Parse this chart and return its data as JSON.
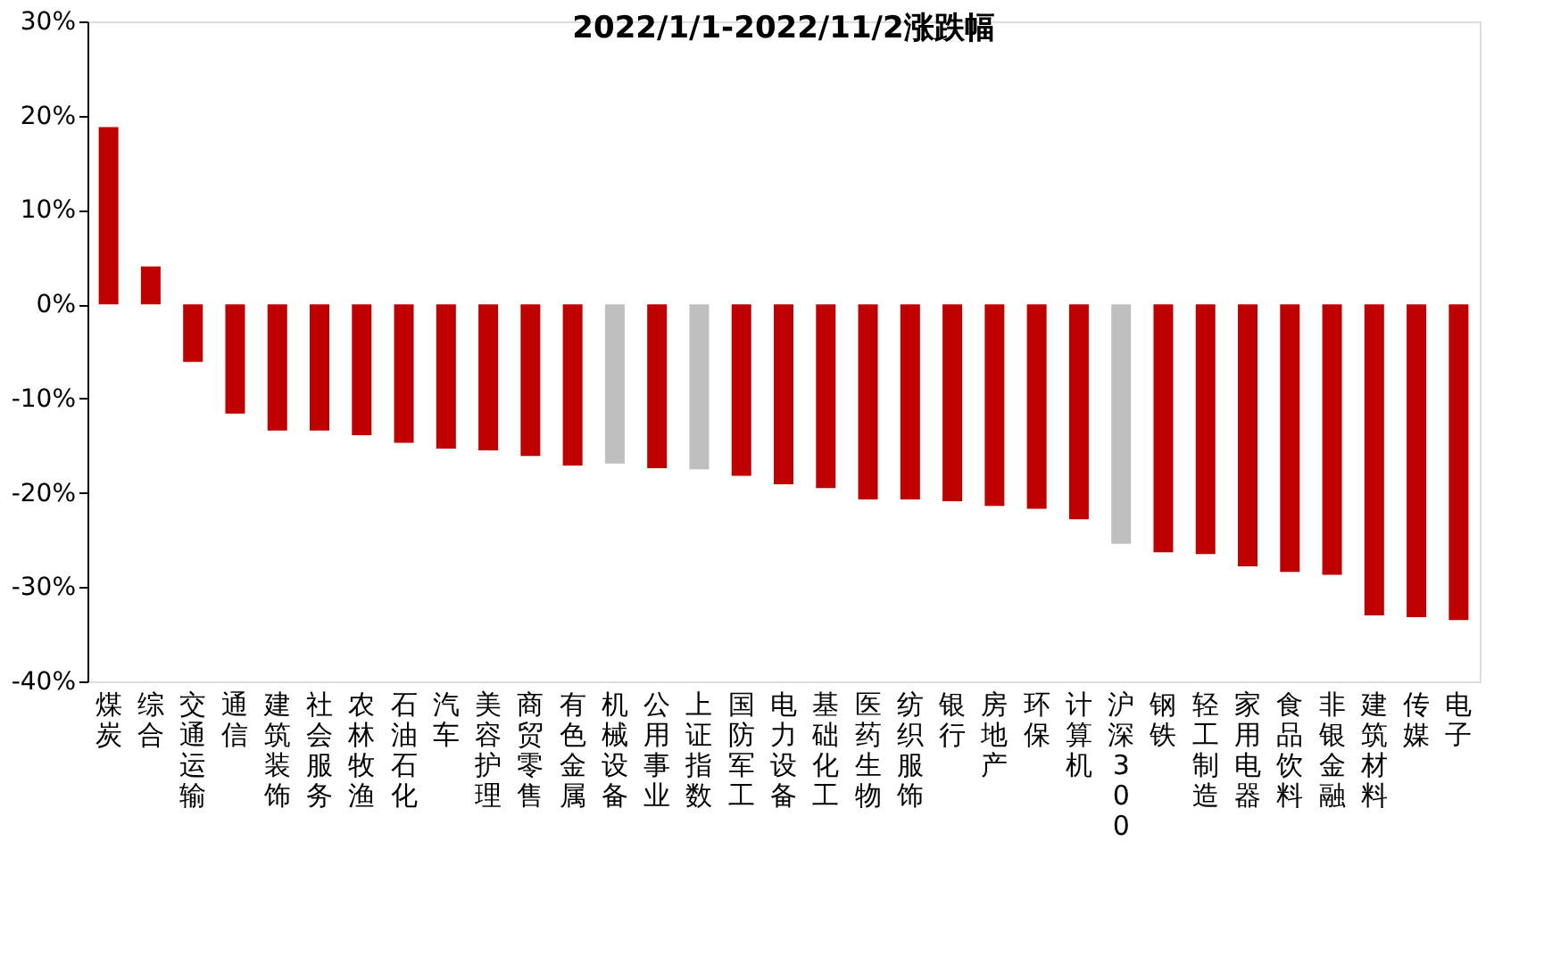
{
  "chart_data": {
    "type": "bar",
    "title": "2022/1/1-2022/11/2涨跌幅",
    "categories": [
      "煤炭",
      "综合",
      "交通运输",
      "通信",
      "建筑装饰",
      "社会服务",
      "农林牧渔",
      "石油石化",
      "汽车",
      "美容护理",
      "商贸零售",
      "有色金属",
      "机械设备",
      "公用事业",
      "上证指数",
      "国防军工",
      "电力设备",
      "基础化工",
      "医药生物",
      "纺织服饰",
      "银行",
      "房地产",
      "环保",
      "计算机",
      "沪深300",
      "钢铁",
      "轻工制造",
      "家用电器",
      "食品饮料",
      "非银金融",
      "建筑材料",
      "传媒",
      "电子"
    ],
    "values": [
      18.8,
      4.0,
      -6.1,
      -11.6,
      -13.4,
      -13.4,
      -13.9,
      -14.7,
      -15.3,
      -15.5,
      -16.1,
      -17.1,
      -16.9,
      -17.4,
      -17.5,
      -18.2,
      -19.1,
      -19.5,
      -20.7,
      -20.7,
      -20.9,
      -21.4,
      -21.7,
      -22.8,
      -25.4,
      -26.3,
      -26.5,
      -27.8,
      -28.4,
      -28.7,
      -33.0,
      -33.2,
      -33.5
    ],
    "colors": [
      "#c00000",
      "#c00000",
      "#c00000",
      "#c00000",
      "#c00000",
      "#c00000",
      "#c00000",
      "#c00000",
      "#c00000",
      "#c00000",
      "#c00000",
      "#c00000",
      "#bfbfbf",
      "#c00000",
      "#bfbfbf",
      "#c00000",
      "#c00000",
      "#c00000",
      "#c00000",
      "#c00000",
      "#c00000",
      "#c00000",
      "#c00000",
      "#c00000",
      "#bfbfbf",
      "#c00000",
      "#c00000",
      "#c00000",
      "#c00000",
      "#c00000",
      "#c00000",
      "#c00000",
      "#c00000"
    ],
    "ylim": [
      -40,
      30
    ],
    "yticks": [
      {
        "value": -40,
        "label": "-40%"
      },
      {
        "value": -30,
        "label": "-30%"
      },
      {
        "value": -20,
        "label": "-20%"
      },
      {
        "value": -10,
        "label": "-10%"
      },
      {
        "value": 0,
        "label": "0%"
      },
      {
        "value": 10,
        "label": "10%"
      },
      {
        "value": 20,
        "label": "20%"
      },
      {
        "value": 30,
        "label": "30%"
      }
    ],
    "grid": false
  }
}
